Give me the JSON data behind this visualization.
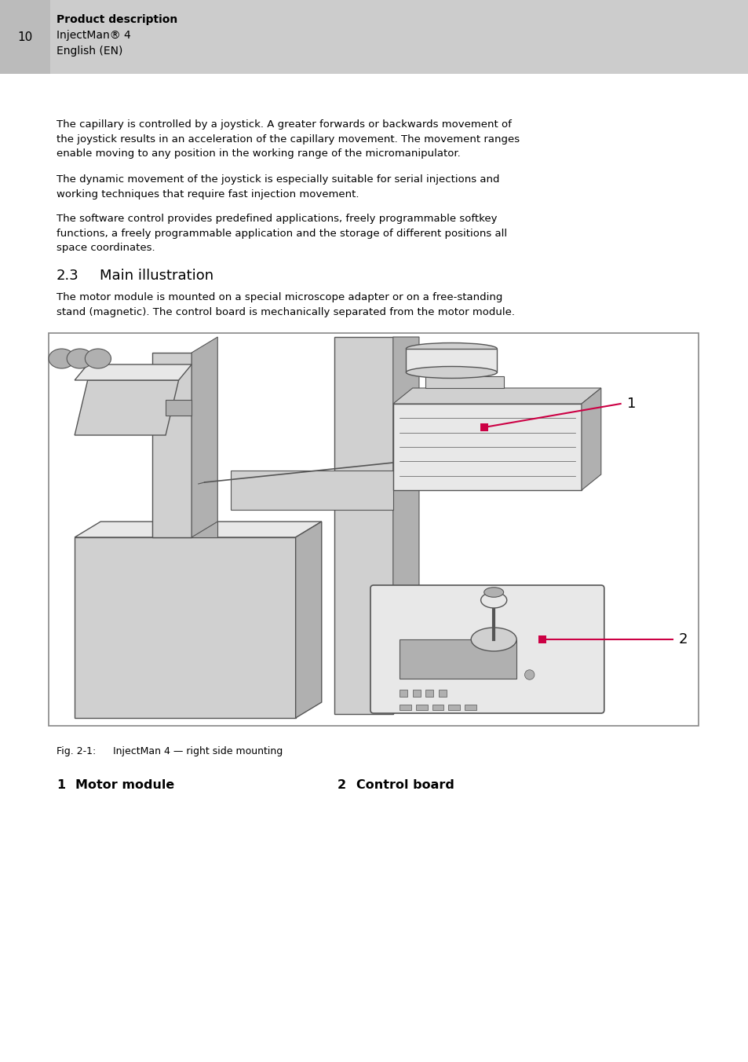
{
  "page_bg": "#ffffff",
  "header_bg": "#cccccc",
  "header_num": "10",
  "header_line1": "Product description",
  "header_line2": "InjectMan® 4",
  "header_line3": "English (EN)",
  "body_texts": [
    "The capillary is controlled by a joystick. A greater forwards or backwards movement of\nthe joystick results in an acceleration of the capillary movement. The movement ranges\nenable moving to any position in the working range of the micromanipulator.",
    "The dynamic movement of the joystick is especially suitable for serial injections and\nworking techniques that require fast injection movement.",
    "The software control provides predefined applications, freely programmable softkey\nfunctions, a freely programmable application and the storage of different positions all\nspace coordinates."
  ],
  "section_num": "2.3",
  "section_title": "Main illustration",
  "section_body": "The motor module is mounted on a special microscope adapter or on a free-standing\nstand (magnetic). The control board is mechanically separated from the motor module.",
  "fig_caption_label": "Fig. 2-1:",
  "fig_caption_text": "InjectMan 4 — right side mounting",
  "legend_1_num": "1",
  "legend_1_text": "Motor module",
  "legend_2_num": "2",
  "legend_2_text": "Control board",
  "callout_color": "#cc0044",
  "box_border_color": "#777777",
  "text_color": "#000000",
  "header_text_color": "#000000",
  "illus_light": "#e8e8e8",
  "illus_mid": "#d0d0d0",
  "illus_dark": "#b0b0b0",
  "illus_edge": "#555555"
}
